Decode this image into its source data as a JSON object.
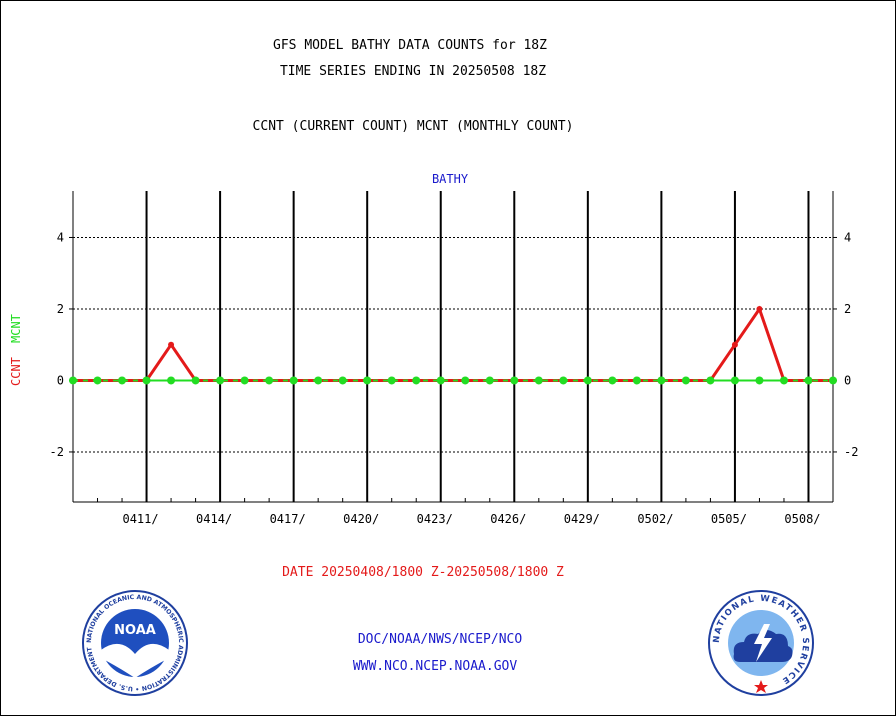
{
  "titles": {
    "line1": "GFS MODEL BATHY DATA COUNTS for 18Z",
    "line2": "TIME SERIES ENDING IN 20250508 18Z",
    "line3": "CCNT (CURRENT COUNT) MCNT (MONTHLY COUNT)"
  },
  "panel_label": "BATHY",
  "ylabel": {
    "ccnt": "CCNT",
    "mcnt": "MCNT"
  },
  "date_range": "DATE 20250408/1800 Z-20250508/1800 Z",
  "credits": {
    "line1": "DOC/NOAA/NWS/NCEP/NCO",
    "line2": "WWW.NCO.NCEP.NOAA.GOV"
  },
  "logos": {
    "left": {
      "center_text": "NOAA",
      "ring_text": "NATIONAL OCEANIC AND ATMOSPHERIC ADMINISTRATION • U.S. DEPARTMENT OF COMMERCE"
    },
    "right": {
      "ring_text": "NATIONAL WEATHER SERVICE"
    }
  },
  "colors": {
    "ccnt": "#e41a1a",
    "mcnt": "#22dd22",
    "title_blue": "#1a1acc",
    "axes": "#000000"
  },
  "chart_data": {
    "type": "line",
    "title": "GFS MODEL BATHY DATA COUNTS for 18Z",
    "xlabel": "DATE 20250408/1800 Z-20250508/1800 Z",
    "ylabel": "CCNT  MCNT",
    "ylim": [
      -3.4,
      5.3
    ],
    "yticks": [
      -2,
      0,
      2,
      4
    ],
    "ytick_labels": [
      "-2",
      "0",
      "2",
      "4"
    ],
    "xlim": [
      "2025-04-08",
      "2025-05-09"
    ],
    "xtick_labels": [
      {
        "date": "2025-04-11",
        "label": "0411/"
      },
      {
        "date": "2025-04-14",
        "label": "0414/"
      },
      {
        "date": "2025-04-17",
        "label": "0417/"
      },
      {
        "date": "2025-04-20",
        "label": "0420/"
      },
      {
        "date": "2025-04-23",
        "label": "0423/"
      },
      {
        "date": "2025-04-26",
        "label": "0426/"
      },
      {
        "date": "2025-04-29",
        "label": "0429/"
      },
      {
        "date": "2025-05-02",
        "label": "0502/"
      },
      {
        "date": "2025-05-05",
        "label": "0505/"
      },
      {
        "date": "2025-05-08",
        "label": "0508/"
      }
    ],
    "grid": true,
    "x": [
      "2025-04-08",
      "2025-04-09",
      "2025-04-10",
      "2025-04-11",
      "2025-04-12",
      "2025-04-13",
      "2025-04-14",
      "2025-04-15",
      "2025-04-16",
      "2025-04-17",
      "2025-04-18",
      "2025-04-19",
      "2025-04-20",
      "2025-04-21",
      "2025-04-22",
      "2025-04-23",
      "2025-04-24",
      "2025-04-25",
      "2025-04-26",
      "2025-04-27",
      "2025-04-28",
      "2025-04-29",
      "2025-04-30",
      "2025-05-01",
      "2025-05-02",
      "2025-05-03",
      "2025-05-04",
      "2025-05-05",
      "2025-05-06",
      "2025-05-07",
      "2025-05-08",
      "2025-05-09"
    ],
    "series": [
      {
        "name": "CCNT",
        "color": "#e41a1a",
        "values": [
          0,
          0,
          0,
          0,
          1,
          0,
          0,
          0,
          0,
          0,
          0,
          0,
          0,
          0,
          0,
          0,
          0,
          0,
          0,
          0,
          0,
          0,
          0,
          0,
          0,
          0,
          0,
          1,
          2,
          0,
          0,
          0
        ]
      },
      {
        "name": "MCNT",
        "color": "#22dd22",
        "values": [
          0,
          0,
          0,
          0,
          0,
          0,
          0,
          0,
          0,
          0,
          0,
          0,
          0,
          0,
          0,
          0,
          0,
          0,
          0,
          0,
          0,
          0,
          0,
          0,
          0,
          0,
          0,
          0,
          0,
          0,
          0,
          0
        ]
      }
    ]
  }
}
